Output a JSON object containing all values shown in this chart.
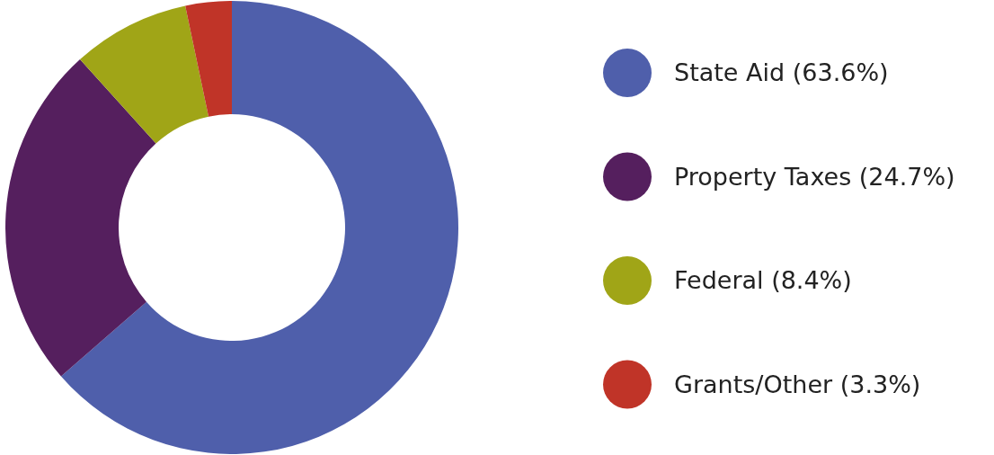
{
  "chart_data": {
    "type": "donut",
    "categories": [
      "State Aid (63.6%)",
      "Property Taxes (24.7%)",
      "Federal (8.4%)",
      "Grants/Other (3.3%)"
    ],
    "values": [
      63.6,
      24.7,
      8.4,
      3.3
    ],
    "colors": [
      "#4f5fab",
      "#551f5e",
      "#a0a517",
      "#c03428"
    ],
    "legend": "right"
  }
}
